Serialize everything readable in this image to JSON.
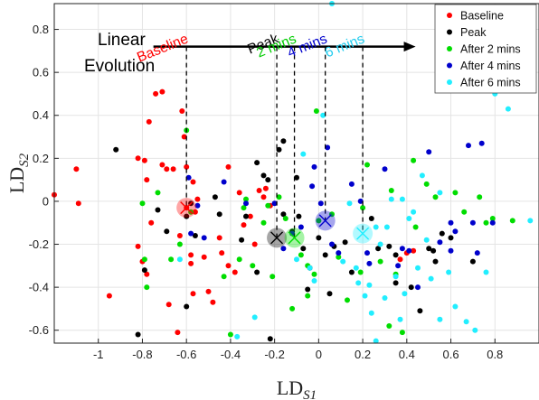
{
  "chart_data": {
    "type": "scatter",
    "xlabel": "LD",
    "xlabel_sub": "S1",
    "ylabel": "LD",
    "ylabel_sub": "S2",
    "xlim": [
      -1.2,
      1.0
    ],
    "ylim": [
      -0.66,
      0.92
    ],
    "xticks": [
      -1,
      -0.8,
      -0.6,
      -0.4,
      -0.2,
      0,
      0.2,
      0.4,
      0.6,
      0.8
    ],
    "xtick_labels": [
      "-1",
      "-0.8",
      "-0.6",
      "-0.4",
      "-0.2",
      "0",
      "0.2",
      "0.4",
      "0.6",
      "0.8"
    ],
    "yticks": [
      0.8,
      0.6,
      0.4,
      0.2,
      0,
      -0.2,
      -0.4,
      -0.6
    ],
    "ytick_labels": [
      "0.8",
      "0.6",
      "0.4",
      "0.2",
      "0",
      "-0.2",
      "-0.4",
      "-0.6"
    ],
    "grid": true,
    "legend_position": "top-right",
    "series": [
      {
        "name": "Baseline",
        "color": "#ff0000",
        "points": [
          [
            -1.1,
            0.15
          ],
          [
            -1.09,
            -0.01
          ],
          [
            -1.2,
            0.03
          ],
          [
            -0.95,
            -0.44
          ],
          [
            -0.82,
            0.2
          ],
          [
            -0.79,
            0.19
          ],
          [
            -0.76,
            -0.1
          ],
          [
            -0.71,
            0.17
          ],
          [
            -0.78,
            0.1
          ],
          [
            -0.77,
            0.37
          ],
          [
            -0.74,
            0.5
          ],
          [
            -0.71,
            0.51
          ],
          [
            -0.69,
            0.15
          ],
          [
            -0.66,
            0.15
          ],
          [
            -0.62,
            0.42
          ],
          [
            -0.63,
            -0.16
          ],
          [
            -0.6,
            -0.03
          ],
          [
            -0.58,
            -0.25
          ],
          [
            -0.57,
            0.09
          ],
          [
            -0.57,
            -0.43
          ],
          [
            -0.55,
            0.01
          ],
          [
            -0.6,
            0.16
          ],
          [
            -0.61,
            0.3
          ],
          [
            -0.58,
            -0.29
          ],
          [
            -0.52,
            -0.26
          ],
          [
            -0.5,
            -0.42
          ],
          [
            -0.48,
            -0.47
          ],
          [
            -0.45,
            -0.17
          ],
          [
            -0.44,
            -0.24
          ],
          [
            -0.41,
            -0.3
          ],
          [
            -0.38,
            -0.33
          ],
          [
            -0.36,
            0.04
          ],
          [
            -0.34,
            -0.11
          ],
          [
            -0.31,
            -0.07
          ],
          [
            -0.29,
            -0.2
          ],
          [
            -0.27,
            0.05
          ],
          [
            -0.25,
            0.02
          ],
          [
            -0.24,
            0.06
          ],
          [
            -0.22,
            -0.02
          ],
          [
            -0.8,
            -0.28
          ],
          [
            -0.82,
            -0.21
          ],
          [
            -0.78,
            -0.34
          ],
          [
            -0.68,
            -0.48
          ],
          [
            -0.64,
            -0.61
          ],
          [
            -0.41,
            0.16
          ],
          [
            0.37,
            -0.27
          ],
          [
            0.4,
            -0.24
          ],
          [
            0.43,
            -0.23
          ],
          [
            -0.56,
            -0.05
          ]
        ]
      },
      {
        "name": "Peak",
        "color": "#000000",
        "points": [
          [
            -0.92,
            0.24
          ],
          [
            -0.82,
            -0.62
          ],
          [
            -0.79,
            -0.32
          ],
          [
            -0.73,
            -0.04
          ],
          [
            -0.69,
            -0.14
          ],
          [
            -0.6,
            -0.07
          ],
          [
            -0.58,
            -0.01
          ],
          [
            -0.56,
            -0.16
          ],
          [
            -0.47,
            0.02
          ],
          [
            -0.45,
            -0.06
          ],
          [
            -0.35,
            -0.18
          ],
          [
            -0.28,
            -0.33
          ],
          [
            -0.28,
            0.18
          ],
          [
            -0.25,
            0.12
          ],
          [
            -0.23,
            0.1
          ],
          [
            -0.18,
            0.24
          ],
          [
            -0.16,
            0.28
          ],
          [
            -0.16,
            -0.06
          ],
          [
            -0.12,
            -0.14
          ],
          [
            -0.1,
            0.11
          ],
          [
            -0.09,
            -0.07
          ],
          [
            -0.07,
            -0.22
          ],
          [
            -0.05,
            -0.41
          ],
          [
            -0.04,
            -0.31
          ],
          [
            0.0,
            -0.17
          ],
          [
            0.03,
            -0.25
          ],
          [
            0.05,
            -0.43
          ],
          [
            0.07,
            -0.21
          ],
          [
            0.12,
            -0.19
          ],
          [
            0.15,
            -0.33
          ],
          [
            0.27,
            -0.22
          ],
          [
            0.32,
            -0.21
          ],
          [
            0.35,
            -0.38
          ],
          [
            0.42,
            -0.4
          ],
          [
            0.46,
            -0.51
          ],
          [
            0.5,
            -0.22
          ],
          [
            0.53,
            -0.28
          ],
          [
            0.7,
            -0.28
          ],
          [
            0.24,
            -0.08
          ],
          [
            -0.33,
            -0.07
          ],
          [
            -0.22,
            -0.64
          ],
          [
            -0.6,
            -0.49
          ],
          [
            0.35,
            -0.25
          ],
          [
            0.52,
            -0.23
          ],
          [
            0.56,
            -0.15
          ],
          [
            0.6,
            -0.17
          ]
        ]
      },
      {
        "name": "After 2 mins",
        "color": "#00dd00",
        "points": [
          [
            -0.8,
            -0.01
          ],
          [
            -0.79,
            -0.27
          ],
          [
            -0.78,
            -0.4
          ],
          [
            -0.73,
            0.04
          ],
          [
            -0.67,
            -0.27
          ],
          [
            -0.63,
            -0.2
          ],
          [
            -0.6,
            0.33
          ],
          [
            -0.58,
            -0.05
          ],
          [
            -0.43,
            -0.35
          ],
          [
            -0.4,
            -0.62
          ],
          [
            -0.36,
            -0.27
          ],
          [
            -0.34,
            -0.03
          ],
          [
            -0.3,
            -0.3
          ],
          [
            -0.25,
            -0.1
          ],
          [
            -0.23,
            -0.02
          ],
          [
            -0.21,
            -0.35
          ],
          [
            -0.18,
            0.02
          ],
          [
            -0.15,
            -0.08
          ],
          [
            -0.12,
            -0.5
          ],
          [
            -0.08,
            -0.25
          ],
          [
            -0.05,
            -0.3
          ],
          [
            -0.02,
            -0.34
          ],
          [
            0.0,
            -0.09
          ],
          [
            0.06,
            -0.06
          ],
          [
            0.09,
            -0.26
          ],
          [
            0.13,
            -0.46
          ],
          [
            0.19,
            -0.33
          ],
          [
            0.22,
            0.17
          ],
          [
            0.28,
            -0.28
          ],
          [
            0.33,
            0.05
          ],
          [
            0.35,
            -0.34
          ],
          [
            0.38,
            -0.61
          ],
          [
            0.44,
            -0.12
          ],
          [
            0.49,
            0.08
          ],
          [
            0.53,
            0.02
          ],
          [
            0.62,
            0.04
          ],
          [
            0.66,
            -0.05
          ],
          [
            0.76,
            -0.1
          ],
          [
            0.79,
            -0.08
          ],
          [
            0.88,
            -0.09
          ],
          [
            0.73,
            0.02
          ],
          [
            0.43,
            0.19
          ],
          [
            0.2,
            -0.03
          ],
          [
            -0.01,
            0.42
          ],
          [
            -0.05,
            -0.44
          ],
          [
            0.32,
            -0.58
          ],
          [
            -0.33,
            0.01
          ]
        ]
      },
      {
        "name": "After 4 mins",
        "color": "#0000cc",
        "points": [
          [
            -0.59,
            0.11
          ],
          [
            -0.58,
            -0.15
          ],
          [
            -0.55,
            -0.02
          ],
          [
            -0.43,
            0.09
          ],
          [
            -0.33,
            -0.01
          ],
          [
            -0.2,
            -0.01
          ],
          [
            -0.16,
            -0.22
          ],
          [
            -0.12,
            -0.15
          ],
          [
            -0.08,
            -0.12
          ],
          [
            -0.03,
            0.07
          ],
          [
            -0.02,
            0.16
          ],
          [
            0.01,
            -0.01
          ],
          [
            0.04,
            0.25
          ],
          [
            0.06,
            -0.2
          ],
          [
            0.09,
            -0.24
          ],
          [
            0.15,
            0.08
          ],
          [
            0.19,
            0.0
          ],
          [
            0.22,
            -0.24
          ],
          [
            0.23,
            -0.29
          ],
          [
            0.3,
            0.15
          ],
          [
            0.36,
            -0.3
          ],
          [
            0.38,
            -0.22
          ],
          [
            0.41,
            -0.23
          ],
          [
            0.5,
            0.23
          ],
          [
            0.55,
            -0.19
          ],
          [
            0.6,
            -0.1
          ],
          [
            0.62,
            -0.14
          ],
          [
            0.68,
            0.26
          ],
          [
            0.7,
            -0.1
          ],
          [
            0.72,
            -0.24
          ],
          [
            0.74,
            0.27
          ],
          [
            0.45,
            -0.4
          ],
          [
            -0.52,
            -0.17
          ],
          [
            0.6,
            -0.23
          ],
          [
            0.79,
            -0.1
          ]
        ]
      },
      {
        "name": "After 6 mins",
        "color": "#22eeff",
        "points": [
          [
            -0.63,
            -0.27
          ],
          [
            -0.37,
            -0.63
          ],
          [
            -0.29,
            -0.54
          ],
          [
            -0.1,
            -0.27
          ],
          [
            -0.07,
            0.22
          ],
          [
            -0.04,
            -0.31
          ],
          [
            -0.02,
            -0.37
          ],
          [
            0.02,
            0.4
          ],
          [
            0.06,
            0.92
          ],
          [
            0.11,
            -0.28
          ],
          [
            0.14,
            -0.01
          ],
          [
            0.18,
            -0.38
          ],
          [
            0.21,
            -0.44
          ],
          [
            0.23,
            -0.39
          ],
          [
            0.24,
            -0.52
          ],
          [
            0.26,
            -0.12
          ],
          [
            0.28,
            -0.2
          ],
          [
            0.3,
            -0.45
          ],
          [
            0.31,
            -0.12
          ],
          [
            0.33,
            0.01
          ],
          [
            0.35,
            -0.35
          ],
          [
            0.37,
            -0.55
          ],
          [
            0.39,
            -0.43
          ],
          [
            0.41,
            -0.08
          ],
          [
            0.43,
            -0.05
          ],
          [
            0.47,
            0.12
          ],
          [
            0.49,
            -0.18
          ],
          [
            0.51,
            -0.36
          ],
          [
            0.55,
            0.04
          ],
          [
            0.59,
            -0.33
          ],
          [
            0.62,
            -0.49
          ],
          [
            0.67,
            -0.56
          ],
          [
            0.71,
            -0.6
          ],
          [
            0.76,
            -0.33
          ],
          [
            0.8,
            0.5
          ],
          [
            0.86,
            0.43
          ],
          [
            0.96,
            -0.09
          ],
          [
            0.55,
            -0.55
          ],
          [
            0.45,
            -0.31
          ],
          [
            0.26,
            -0.65
          ],
          [
            0.17,
            -0.31
          ],
          [
            0.38,
            0.01
          ]
        ]
      }
    ],
    "centroids": [
      {
        "name": "Baseline",
        "x": -0.6,
        "y": -0.03,
        "color": "#ff0000"
      },
      {
        "name": "Peak",
        "x": -0.19,
        "y": -0.17,
        "color": "#000000"
      },
      {
        "name": "2 mins",
        "x": -0.11,
        "y": -0.17,
        "color": "#00dd00"
      },
      {
        "name": "4 mins",
        "x": 0.03,
        "y": -0.09,
        "color": "#0000cc"
      },
      {
        "name": "6 mins",
        "x": 0.2,
        "y": -0.15,
        "color": "#22eeff"
      }
    ],
    "annotation": {
      "title_line1": "Linear",
      "title_line2": "Evolution",
      "arrow_start_x": -0.75,
      "arrow_end_x": 0.44,
      "arrow_y": 0.72,
      "labels": [
        {
          "text": "Baseline",
          "color": "#ff0000",
          "x": -0.6
        },
        {
          "text": "Peak",
          "color": "#000000",
          "x": -0.19
        },
        {
          "text": "2 mins",
          "color": "#00cc00",
          "x": -0.11
        },
        {
          "text": "4 mins",
          "color": "#0000cc",
          "x": 0.03
        },
        {
          "text": "6 mins",
          "color": "#22ccee",
          "x": 0.2
        }
      ]
    },
    "legend": [
      {
        "label": "Baseline",
        "color": "#ff0000"
      },
      {
        "label": "Peak",
        "color": "#000000"
      },
      {
        "label": "After 2 mins",
        "color": "#00dd00"
      },
      {
        "label": "After 4 mins",
        "color": "#0000cc"
      },
      {
        "label": "After 6 mins",
        "color": "#22eeff"
      }
    ]
  }
}
